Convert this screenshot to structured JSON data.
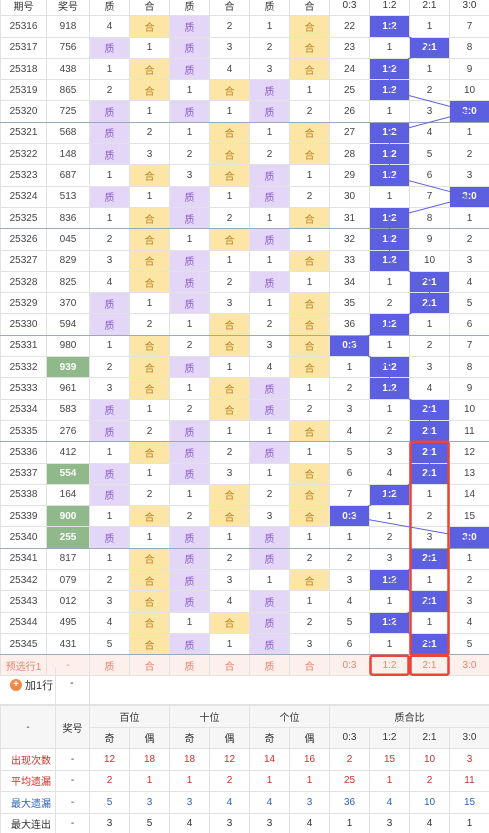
{
  "top_header": [
    "质",
    "合",
    "质",
    "合",
    "质",
    "合",
    "0:3",
    "1:2",
    "2:1",
    "3:0"
  ],
  "top_header_left": [
    "期号",
    "奖号"
  ],
  "rows": [
    {
      "id": "25316",
      "num": "918",
      "c": [
        "4",
        "合",
        "质",
        "2",
        "1",
        "合"
      ],
      "r": [
        "22",
        "1:2",
        "1",
        "7"
      ],
      "hi": 1
    },
    {
      "id": "25317",
      "num": "756",
      "c": [
        "质",
        "1",
        "质",
        "3",
        "2",
        "合"
      ],
      "r": [
        "23",
        "1",
        "2:1",
        "8"
      ],
      "hi": 2
    },
    {
      "id": "25318",
      "num": "438",
      "c": [
        "1",
        "合",
        "质",
        "4",
        "3",
        "合"
      ],
      "r": [
        "24",
        "1:2",
        "1",
        "9"
      ],
      "hi": 1
    },
    {
      "id": "25319",
      "num": "865",
      "c": [
        "2",
        "合",
        "1",
        "合",
        "质",
        "1"
      ],
      "r": [
        "25",
        "1:2",
        "2",
        "10"
      ],
      "hi": 1
    },
    {
      "id": "25320",
      "num": "725",
      "c": [
        "质",
        "1",
        "质",
        "1",
        "质",
        "2"
      ],
      "r": [
        "26",
        "1",
        "3",
        "3:0"
      ],
      "hi": 3
    },
    {
      "id": "25321",
      "num": "568",
      "c": [
        "质",
        "2",
        "1",
        "合",
        "1",
        "合"
      ],
      "r": [
        "27",
        "1:2",
        "4",
        "1"
      ],
      "hi": 1
    },
    {
      "id": "25322",
      "num": "148",
      "c": [
        "质",
        "3",
        "2",
        "合",
        "2",
        "合"
      ],
      "r": [
        "28",
        "1:2",
        "5",
        "2"
      ],
      "hi": 1
    },
    {
      "id": "25323",
      "num": "687",
      "c": [
        "1",
        "合",
        "3",
        "合",
        "质",
        "1"
      ],
      "r": [
        "29",
        "1:2",
        "6",
        "3"
      ],
      "hi": 1
    },
    {
      "id": "25324",
      "num": "513",
      "c": [
        "质",
        "1",
        "质",
        "1",
        "质",
        "2"
      ],
      "r": [
        "30",
        "1",
        "7",
        "3:0"
      ],
      "hi": 3
    },
    {
      "id": "25325",
      "num": "836",
      "c": [
        "1",
        "合",
        "质",
        "2",
        "1",
        "合"
      ],
      "r": [
        "31",
        "1:2",
        "8",
        "1"
      ],
      "hi": 1
    },
    {
      "id": "25326",
      "num": "045",
      "c": [
        "2",
        "合",
        "1",
        "合",
        "质",
        "1"
      ],
      "r": [
        "32",
        "1:2",
        "9",
        "2"
      ],
      "hi": 1
    },
    {
      "id": "25327",
      "num": "829",
      "c": [
        "3",
        "合",
        "质",
        "1",
        "1",
        "合"
      ],
      "r": [
        "33",
        "1:2",
        "10",
        "3"
      ],
      "hi": 1
    },
    {
      "id": "25328",
      "num": "825",
      "c": [
        "4",
        "合",
        "质",
        "2",
        "质",
        "1"
      ],
      "r": [
        "34",
        "1",
        "2:1",
        "4"
      ],
      "hi": 2
    },
    {
      "id": "25329",
      "num": "370",
      "c": [
        "质",
        "1",
        "质",
        "3",
        "1",
        "合"
      ],
      "r": [
        "35",
        "2",
        "2:1",
        "5"
      ],
      "hi": 2
    },
    {
      "id": "25330",
      "num": "594",
      "c": [
        "质",
        "2",
        "1",
        "合",
        "2",
        "合"
      ],
      "r": [
        "36",
        "1:2",
        "1",
        "6"
      ],
      "hi": 1
    },
    {
      "id": "25331",
      "num": "980",
      "c": [
        "1",
        "合",
        "2",
        "合",
        "3",
        "合"
      ],
      "r": [
        "0:3",
        "1",
        "2",
        "7"
      ],
      "hi": 0
    },
    {
      "id": "25332",
      "num": "939",
      "c": [
        "2",
        "合",
        "质",
        "1",
        "4",
        "合"
      ],
      "r": [
        "1",
        "1:2",
        "3",
        "8"
      ],
      "hi": 1,
      "green": true
    },
    {
      "id": "25333",
      "num": "961",
      "c": [
        "3",
        "合",
        "1",
        "合",
        "质",
        "1"
      ],
      "r": [
        "2",
        "1:2",
        "4",
        "9"
      ],
      "hi": 1
    },
    {
      "id": "25334",
      "num": "583",
      "c": [
        "质",
        "1",
        "2",
        "合",
        "质",
        "2"
      ],
      "r": [
        "3",
        "1",
        "2:1",
        "10"
      ],
      "hi": 2
    },
    {
      "id": "25335",
      "num": "276",
      "c": [
        "质",
        "2",
        "质",
        "1",
        "1",
        "合"
      ],
      "r": [
        "4",
        "2",
        "2:1",
        "11"
      ],
      "hi": 2
    },
    {
      "id": "25336",
      "num": "412",
      "c": [
        "1",
        "合",
        "质",
        "2",
        "质",
        "1"
      ],
      "r": [
        "5",
        "3",
        "2:1",
        "12"
      ],
      "hi": 2
    },
    {
      "id": "25337",
      "num": "554",
      "c": [
        "质",
        "1",
        "质",
        "3",
        "1",
        "合"
      ],
      "r": [
        "6",
        "4",
        "2:1",
        "13"
      ],
      "hi": 2,
      "green": true
    },
    {
      "id": "25338",
      "num": "164",
      "c": [
        "质",
        "2",
        "1",
        "合",
        "2",
        "合"
      ],
      "r": [
        "7",
        "1:2",
        "1",
        "14"
      ],
      "hi": 1
    },
    {
      "id": "25339",
      "num": "900",
      "c": [
        "1",
        "合",
        "2",
        "合",
        "3",
        "合"
      ],
      "r": [
        "0:3",
        "1",
        "2",
        "15"
      ],
      "hi": 0,
      "green": true
    },
    {
      "id": "25340",
      "num": "255",
      "c": [
        "质",
        "1",
        "质",
        "1",
        "质",
        "1"
      ],
      "r": [
        "1",
        "2",
        "3",
        "3:0"
      ],
      "hi": 3,
      "green": true
    },
    {
      "id": "25341",
      "num": "817",
      "c": [
        "1",
        "合",
        "质",
        "2",
        "质",
        "2"
      ],
      "r": [
        "2",
        "3",
        "2:1",
        "1"
      ],
      "hi": 2
    },
    {
      "id": "25342",
      "num": "079",
      "c": [
        "2",
        "合",
        "质",
        "3",
        "1",
        "合"
      ],
      "r": [
        "3",
        "1:2",
        "1",
        "2"
      ],
      "hi": 1
    },
    {
      "id": "25343",
      "num": "012",
      "c": [
        "3",
        "合",
        "质",
        "4",
        "质",
        "1"
      ],
      "r": [
        "4",
        "1",
        "2:1",
        "3"
      ],
      "hi": 2
    },
    {
      "id": "25344",
      "num": "495",
      "c": [
        "4",
        "合",
        "1",
        "合",
        "质",
        "2"
      ],
      "r": [
        "5",
        "1:2",
        "1",
        "4"
      ],
      "hi": 1
    },
    {
      "id": "25345",
      "num": "431",
      "c": [
        "5",
        "合",
        "质",
        "1",
        "质",
        "3"
      ],
      "r": [
        "6",
        "1",
        "2:1",
        "5"
      ],
      "hi": 2
    }
  ],
  "predict_row": {
    "label": "预选行1",
    "num": "-",
    "c": [
      "质",
      "合",
      "质",
      "合",
      "质",
      "合"
    ],
    "r": [
      "0:3",
      "1:2",
      "2:1",
      "3:0"
    ]
  },
  "add_row": {
    "label": "加1行",
    "plus_icon": "+",
    "value": "-"
  },
  "footer": {
    "dash": "-",
    "jianghao": "奖号",
    "groups": [
      "百位",
      "十位",
      "个位",
      "质合比"
    ],
    "sub": [
      "奇",
      "偶",
      "奇",
      "偶",
      "奇",
      "偶",
      "0:3",
      "1:2",
      "2:1",
      "3:0"
    ],
    "stats": [
      {
        "label": "出现次数",
        "dash": "-",
        "vals": [
          "12",
          "18",
          "18",
          "12",
          "14",
          "16",
          "2",
          "15",
          "10",
          "3"
        ],
        "color": "stat-red"
      },
      {
        "label": "平均遗漏",
        "dash": "-",
        "vals": [
          "2",
          "1",
          "1",
          "2",
          "1",
          "1",
          "25",
          "1",
          "2",
          "11"
        ],
        "color": "stat-red"
      },
      {
        "label": "最大遗漏",
        "dash": "-",
        "vals": [
          "5",
          "3",
          "3",
          "4",
          "4",
          "3",
          "36",
          "4",
          "10",
          "15"
        ],
        "color": "stat-blue"
      },
      {
        "label": "最大连出",
        "dash": "-",
        "vals": [
          "3",
          "5",
          "4",
          "3",
          "3",
          "4",
          "1",
          "3",
          "4",
          "1"
        ],
        "color": "stat-dark"
      }
    ]
  },
  "colors": {
    "accent": "#5c5fe0",
    "highlight_box": "#e8453c",
    "zhi_bg": "#e4d6f7",
    "he_bg": "#fde5a6"
  }
}
